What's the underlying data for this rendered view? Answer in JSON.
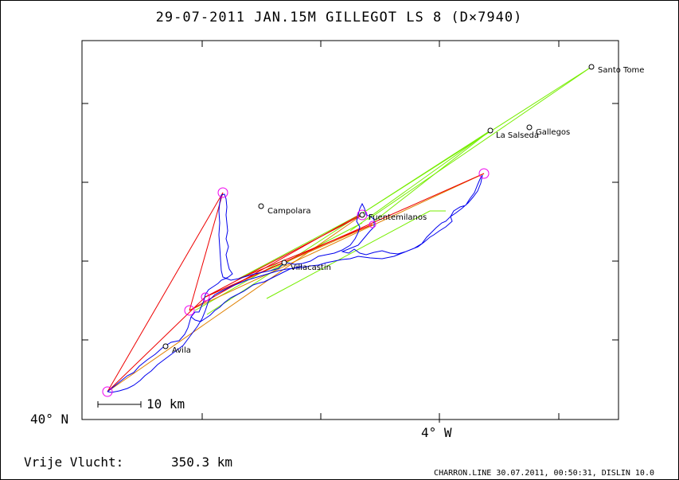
{
  "title": "29-07-2011    JAN.15M GILLEGOT    LS 8 (D×7940)",
  "axes": {
    "lat_label": "40° N",
    "lon_label": "4° W"
  },
  "scale_bar": {
    "label": "10 km",
    "km": 10
  },
  "flight": {
    "label": "Vrije Vlucht:",
    "distance": "350.3 km"
  },
  "footer": "CHARRON.LINE 30.07.2011, 00:50:31, DISLIN 10.0",
  "places": [
    {
      "name": "Santo Tome"
    },
    {
      "name": "La Salseda"
    },
    {
      "name": "Gallegos"
    },
    {
      "name": "Campolara"
    },
    {
      "name": "Fuentemilanos"
    },
    {
      "name": "Villacastin"
    },
    {
      "name": "Avila"
    }
  ],
  "colors": {
    "track": "#0000ee",
    "route": "#ee0000",
    "fai": "#e08000",
    "lines": "#77ee00",
    "turnpoint": "#ee00ee",
    "frame": "#000000"
  }
}
